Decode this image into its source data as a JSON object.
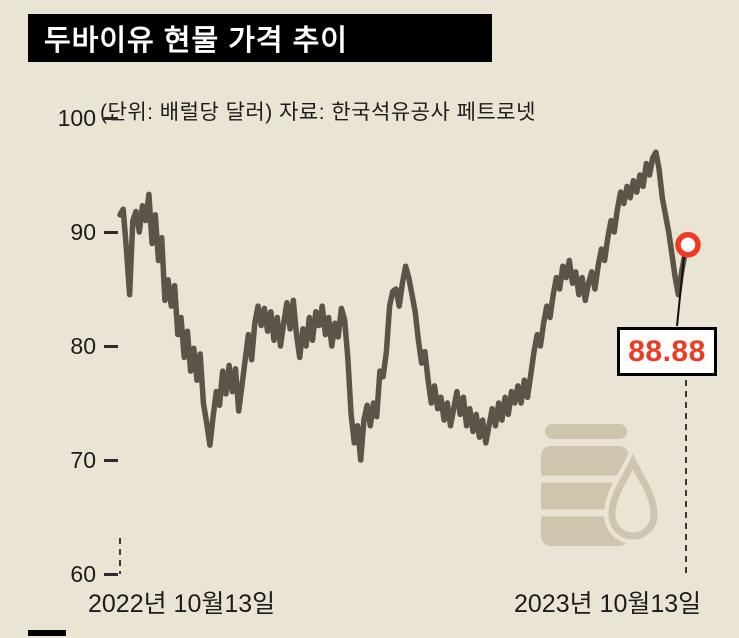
{
  "title": "두바이유 현물 가격 추이",
  "subtitle": "(단위: 배럴당 달러) 자료: 한국석유공사 페트로넷",
  "colors": {
    "background": "#e9e4d4",
    "line": "#5a5547",
    "accent_red": "#ee3a20",
    "icon": "#cdc5ae",
    "title_bar": "#000000"
  },
  "icons": {
    "decoration": "oil-barrel-with-droplet"
  },
  "chart_data": {
    "type": "line",
    "title": "두바이유 현물 가격 추이",
    "unit_note": "(단위: 배럴당 달러)",
    "source": "자료: 한국석유공사 페트로넷",
    "ylim": [
      60,
      100
    ],
    "y_ticks": [
      "100",
      "90",
      "80",
      "70",
      "60"
    ],
    "x_start_label": "2022년 10월13일",
    "x_end_label": "2023년 10월13일",
    "last_value": "88.88",
    "legend": "none",
    "grid": "off",
    "values": [
      91.5,
      92.0,
      88.5,
      84.5,
      91.0,
      91.8,
      90.0,
      92.3,
      91.0,
      93.3,
      89.0,
      91.5,
      87.5,
      89.5,
      84.0,
      85.8,
      83.5,
      85.3,
      81.0,
      82.5,
      79.0,
      81.3,
      77.8,
      79.8,
      77.0,
      79.3,
      75.0,
      73.3,
      71.3,
      73.8,
      76.0,
      74.8,
      77.8,
      75.8,
      78.3,
      76.0,
      78.0,
      74.3,
      76.5,
      78.8,
      81.0,
      78.8,
      82.0,
      83.5,
      81.8,
      83.3,
      81.3,
      83.0,
      80.5,
      82.5,
      80.0,
      82.0,
      83.8,
      81.5,
      84.0,
      81.0,
      79.0,
      81.5,
      80.0,
      82.5,
      80.5,
      83.0,
      81.8,
      83.5,
      81.0,
      82.5,
      80.0,
      82.0,
      80.8,
      83.3,
      82.3,
      79.0,
      74.0,
      71.5,
      73.0,
      70.0,
      73.5,
      74.8,
      73.0,
      75.0,
      73.8,
      77.8,
      77.3,
      79.5,
      83.5,
      84.8,
      85.0,
      83.5,
      85.5,
      87.0,
      86.0,
      84.5,
      83.0,
      80.5,
      78.5,
      79.5,
      77.0,
      75.0,
      76.5,
      74.5,
      75.5,
      73.5,
      75.0,
      73.0,
      74.5,
      76.0,
      74.0,
      75.5,
      73.0,
      74.5,
      72.5,
      74.0,
      72.0,
      73.5,
      71.5,
      73.0,
      74.5,
      73.0,
      75.0,
      73.5,
      75.5,
      74.0,
      76.0,
      75.0,
      76.5,
      75.0,
      77.0,
      75.5,
      77.5,
      79.5,
      81.0,
      80.0,
      82.0,
      83.5,
      82.5,
      84.5,
      86.0,
      85.0,
      87.0,
      86.0,
      87.5,
      85.5,
      86.5,
      84.5,
      86.0,
      84.0,
      85.5,
      86.5,
      85.0,
      87.0,
      88.5,
      87.5,
      89.5,
      91.0,
      90.0,
      92.0,
      93.5,
      92.5,
      94.0,
      93.0,
      94.5,
      93.5,
      95.0,
      94.0,
      96.0,
      95.0,
      96.5,
      97.0,
      95.5,
      93.0,
      91.5,
      90.0,
      88.0,
      86.0,
      84.5,
      86.5,
      88.0,
      88.88
    ]
  }
}
